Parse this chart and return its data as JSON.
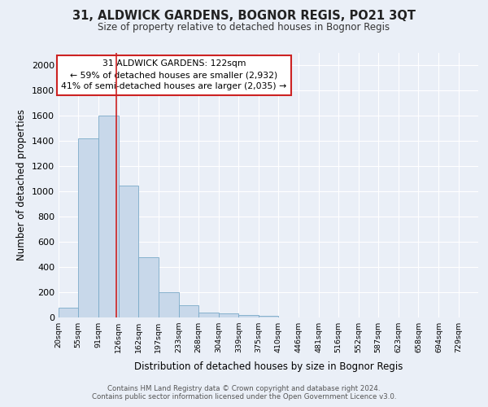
{
  "title": "31, ALDWICK GARDENS, BOGNOR REGIS, PO21 3QT",
  "subtitle": "Size of property relative to detached houses in Bognor Regis",
  "xlabel": "Distribution of detached houses by size in Bognor Regis",
  "ylabel": "Number of detached properties",
  "bin_labels": [
    "20sqm",
    "55sqm",
    "91sqm",
    "126sqm",
    "162sqm",
    "197sqm",
    "233sqm",
    "268sqm",
    "304sqm",
    "339sqm",
    "375sqm",
    "410sqm",
    "446sqm",
    "481sqm",
    "516sqm",
    "552sqm",
    "587sqm",
    "623sqm",
    "658sqm",
    "694sqm",
    "729sqm"
  ],
  "bar_values": [
    80,
    1420,
    1600,
    1050,
    480,
    200,
    100,
    40,
    30,
    20,
    15,
    0,
    0,
    0,
    0,
    0,
    0,
    0,
    0,
    0,
    0
  ],
  "bin_edges": [
    20,
    55,
    91,
    126,
    162,
    197,
    233,
    268,
    304,
    339,
    375,
    410,
    446,
    481,
    516,
    552,
    587,
    623,
    658,
    694,
    729
  ],
  "bar_color": "#c8d8ea",
  "bar_edge_color": "#7aaac8",
  "red_line_x": 122,
  "ylim": [
    0,
    2100
  ],
  "yticks": [
    0,
    200,
    400,
    600,
    800,
    1000,
    1200,
    1400,
    1600,
    1800,
    2000
  ],
  "annotation_title": "31 ALDWICK GARDENS: 122sqm",
  "annotation_line1": "← 59% of detached houses are smaller (2,932)",
  "annotation_line2": "41% of semi-detached houses are larger (2,035) →",
  "annotation_box_color": "#ffffff",
  "annotation_box_edge_color": "#cc2222",
  "footer_line1": "Contains HM Land Registry data © Crown copyright and database right 2024.",
  "footer_line2": "Contains public sector information licensed under the Open Government Licence v3.0.",
  "background_color": "#eaeff7",
  "plot_bg_color": "#eaeff7",
  "grid_color": "#ffffff"
}
